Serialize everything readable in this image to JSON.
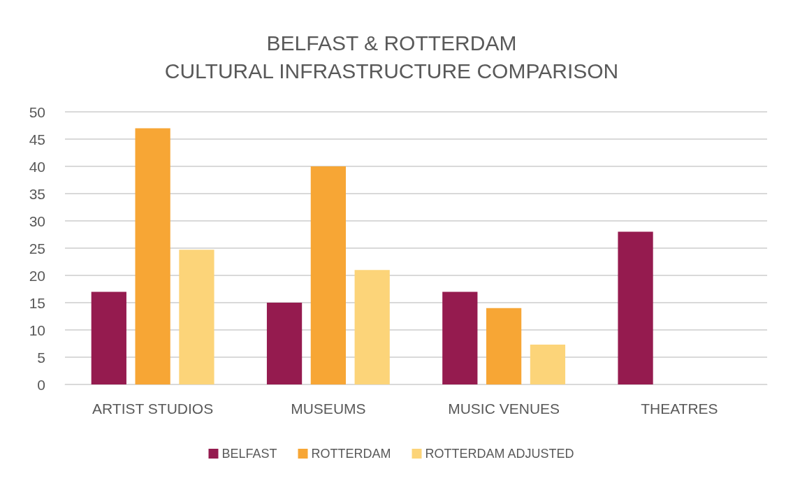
{
  "chart_data": {
    "type": "bar",
    "title": "BELFAST & ROTTERDAM\nCULTURAL INFRASTRUCTURE COMPARISON",
    "categories": [
      "ARTIST STUDIOS",
      "MUSEUMS",
      "MUSIC VENUES",
      "THEATRES"
    ],
    "series": [
      {
        "name": "BELFAST",
        "color": "#951b4f",
        "values": [
          17,
          15,
          17,
          28
        ]
      },
      {
        "name": "ROTTERDAM",
        "color": "#f7a635",
        "values": [
          47,
          40,
          14,
          null
        ]
      },
      {
        "name": "ROTTERDAM ADJUSTED",
        "color": "#fcd479",
        "values": [
          24.7,
          21,
          7.3,
          null
        ]
      }
    ],
    "ylim": [
      0,
      50
    ],
    "yticks": [
      0,
      5,
      10,
      15,
      20,
      25,
      30,
      35,
      40,
      45,
      50
    ],
    "grid": "y",
    "legend": "bottom"
  }
}
